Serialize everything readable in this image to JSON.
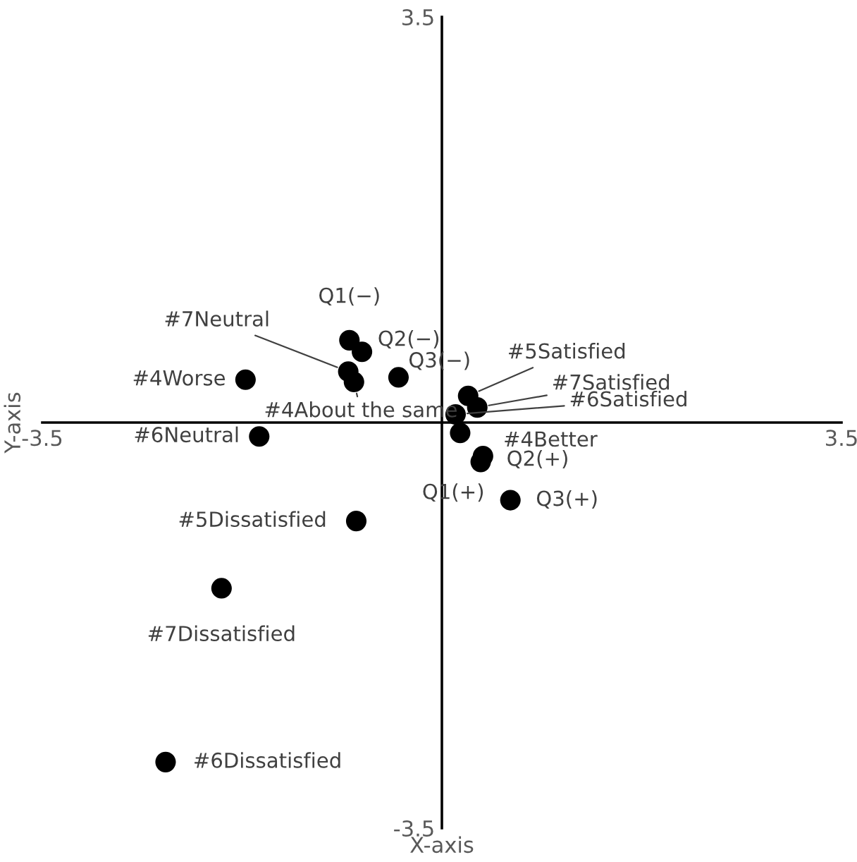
{
  "chart_data": {
    "type": "scatter",
    "xlabel": "X-axis",
    "ylabel": "Y-axis",
    "xlim": [
      -3.5,
      3.5
    ],
    "ylim": [
      -3.5,
      3.5
    ],
    "xticks": [
      -3.5,
      3.5
    ],
    "yticks": [
      -3.5,
      3.5
    ],
    "grid": false,
    "marker": "circle",
    "series": [
      {
        "color": "#000000",
        "x": [
          -1.72,
          -1.6,
          -0.81,
          -0.7,
          -0.82,
          -0.77,
          -0.38,
          0.23,
          0.31,
          0.12,
          0.16,
          0.36,
          0.34,
          0.6,
          -0.75,
          -1.93,
          -2.42
        ],
        "values": [
          0.37,
          -0.12,
          0.71,
          0.61,
          0.44,
          0.35,
          0.39,
          0.23,
          0.13,
          0.07,
          -0.09,
          -0.29,
          -0.34,
          -0.67,
          -0.85,
          -1.43,
          -2.93
        ]
      }
    ],
    "annotations": [
      {
        "text": "#4Worse",
        "x": -1.72,
        "y": 0.37
      },
      {
        "text": "#6Neutral",
        "x": -1.6,
        "y": -0.12
      },
      {
        "text": "Q1(−)",
        "x": -0.81,
        "y": 0.71
      },
      {
        "text": "Q2(−)",
        "x": -0.7,
        "y": 0.61
      },
      {
        "text": "#7Neutral",
        "x": -0.82,
        "y": 0.44
      },
      {
        "text": "#4About the same",
        "x": -0.77,
        "y": 0.35
      },
      {
        "text": "Q3(−)",
        "x": -0.38,
        "y": 0.39
      },
      {
        "text": "#5Satisfied",
        "x": 0.23,
        "y": 0.23
      },
      {
        "text": "#7Satisfied",
        "x": 0.31,
        "y": 0.13
      },
      {
        "text": "#6Satisfied",
        "x": 0.12,
        "y": 0.07
      },
      {
        "text": "#4Better",
        "x": 0.16,
        "y": -0.09
      },
      {
        "text": "Q2(+)",
        "x": 0.36,
        "y": -0.29
      },
      {
        "text": "Q1(+)",
        "x": 0.34,
        "y": -0.34
      },
      {
        "text": "Q3(+)",
        "x": 0.6,
        "y": -0.67
      },
      {
        "text": "#5Dissatisfied",
        "x": -0.75,
        "y": -0.85
      },
      {
        "text": "#7Dissatisfied",
        "x": -1.93,
        "y": -1.43
      },
      {
        "text": "#6Dissatisfied",
        "x": -2.42,
        "y": -2.93
      }
    ]
  }
}
